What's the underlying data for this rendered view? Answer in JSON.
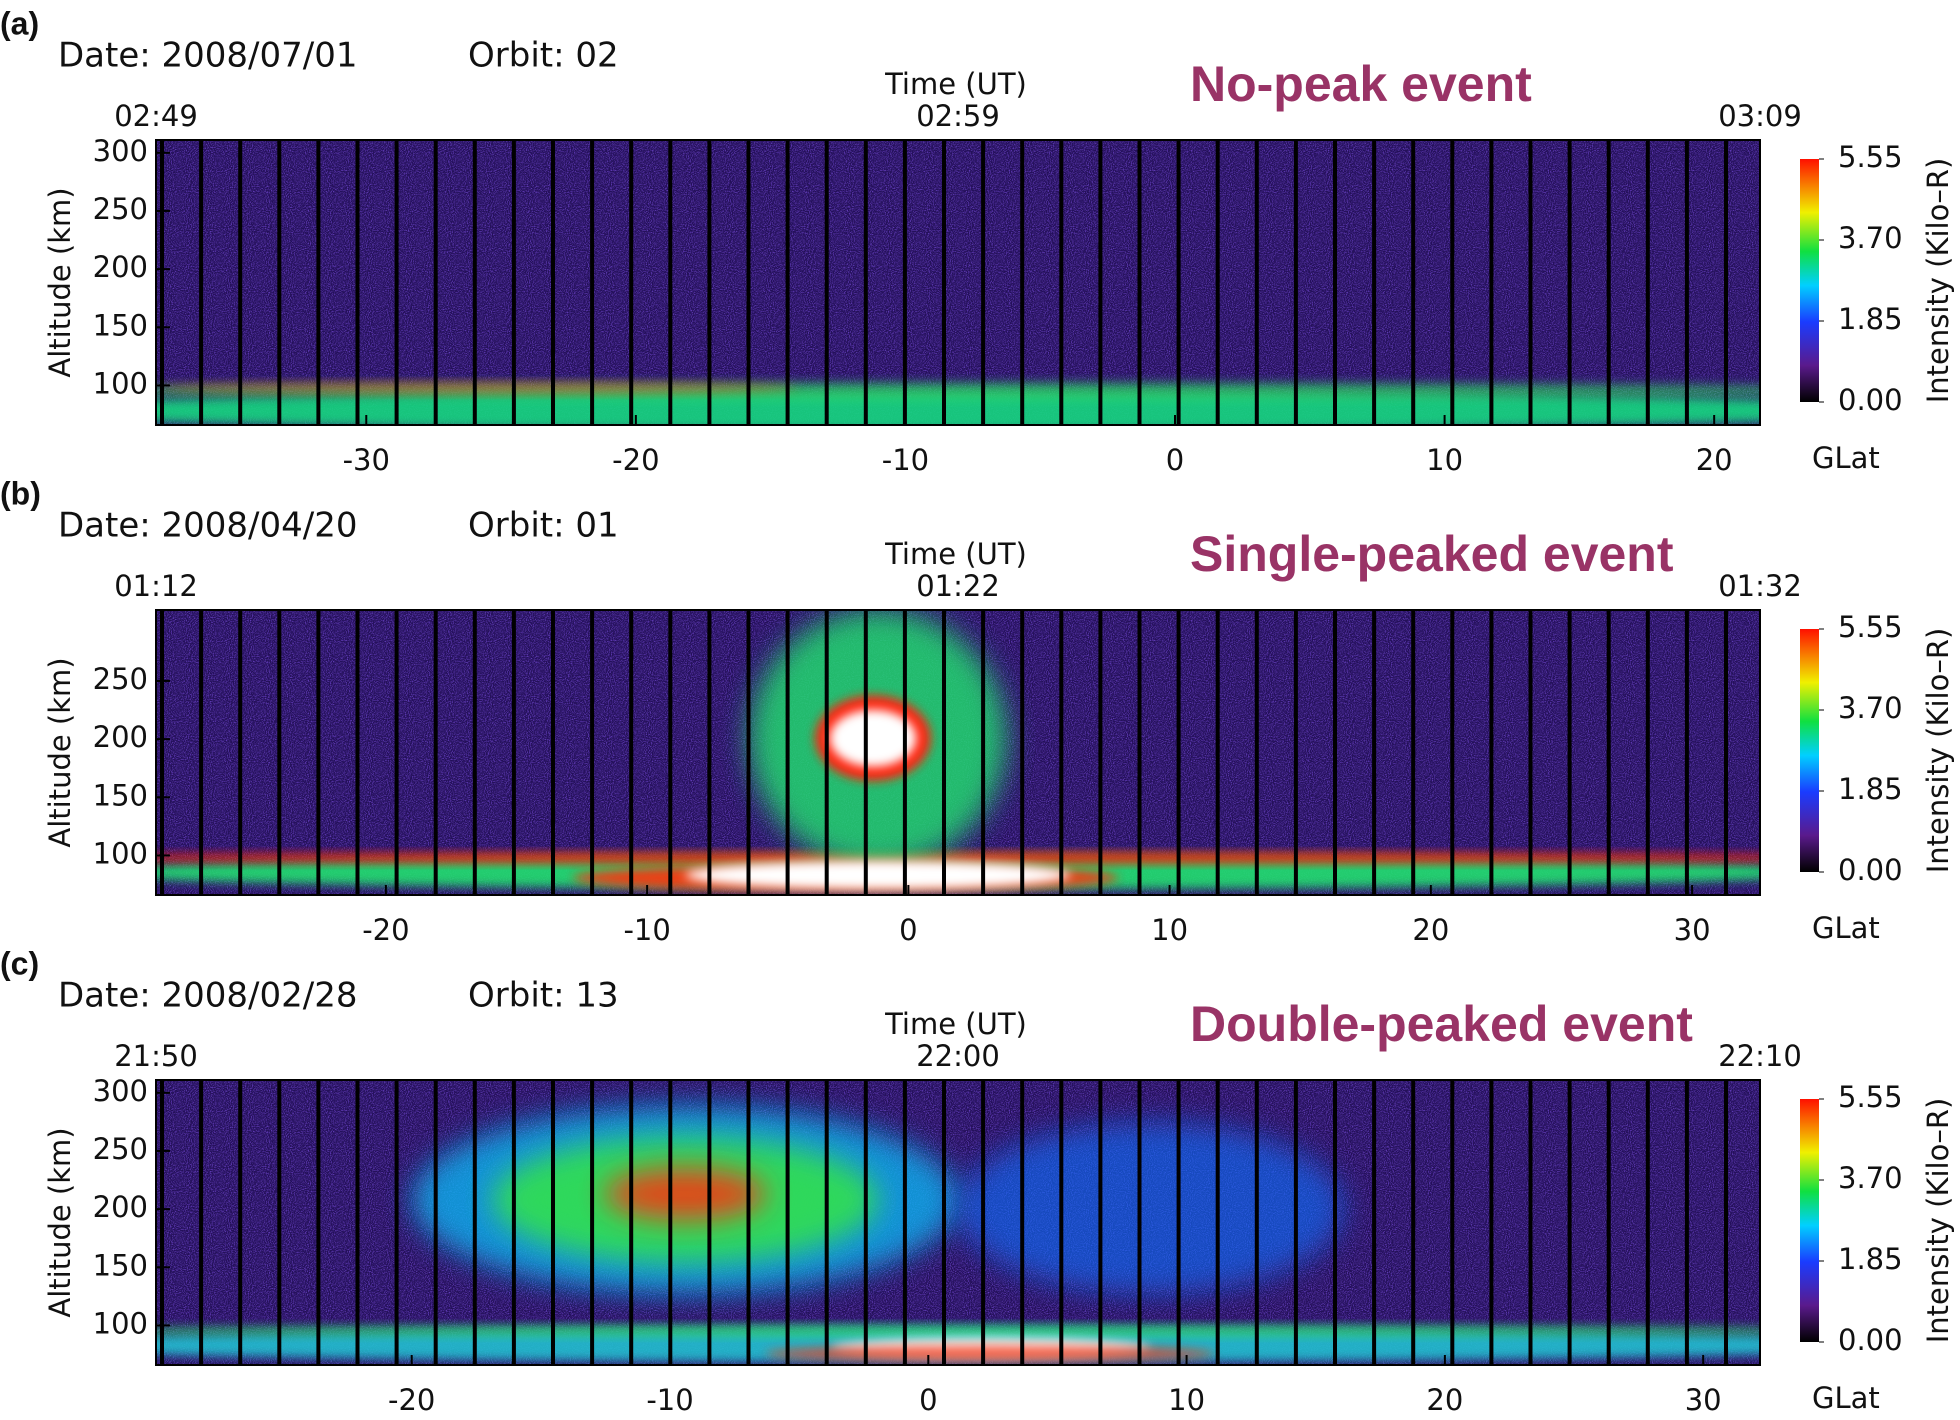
{
  "chart_data": [
    {
      "type": "heatmap",
      "panel_label": "(a)",
      "date_label": "Date: 2008/07/01",
      "orbit_label": "Orbit: 02",
      "title": "No-peak event",
      "time_axis_label": "Time (UT)",
      "time_ticks": [
        "02:49",
        "02:59",
        "03:09"
      ],
      "ylabel": "Altitude (km)",
      "ylim": [
        66,
        311
      ],
      "yticks": [
        100,
        150,
        200,
        250,
        300
      ],
      "xlabel": "GLat",
      "xlim": [
        -37.8,
        21.7
      ],
      "xticks": [
        -30,
        -20,
        -10,
        0,
        10,
        20
      ],
      "colorbar": {
        "label": "Intensity (Kilo–R)",
        "lim": [
          0,
          5.55
        ],
        "ticks": [
          {
            "value": 0,
            "label": "0.00"
          },
          1.85,
          {
            "value": 3.7,
            "label": "3.70"
          },
          5.55
        ]
      }
    },
    {
      "type": "heatmap",
      "panel_label": "(b)",
      "date_label": "Date: 2008/04/20",
      "orbit_label": "Orbit: 01",
      "title": "Single-peaked event",
      "time_axis_label": "Time (UT)",
      "time_ticks": [
        "01:12",
        "01:22",
        "01:32"
      ],
      "ylabel": "Altitude (km)",
      "ylim": [
        66,
        311
      ],
      "yticks": [
        100,
        150,
        200,
        250
      ],
      "xlabel": "GLat",
      "xlim": [
        -28.8,
        32.6
      ],
      "xticks": [
        -20,
        -10,
        0,
        10,
        20,
        30
      ],
      "colorbar": {
        "label": "Intensity (Kilo–R)",
        "lim": [
          0,
          5.55
        ],
        "ticks": [
          {
            "value": 0,
            "label": "0.00"
          },
          1.85,
          {
            "value": 3.7,
            "label": "3.70"
          },
          5.55
        ]
      }
    },
    {
      "type": "heatmap",
      "panel_label": "(c)",
      "date_label": "Date: 2008/02/28",
      "orbit_label": "Orbit: 13",
      "title": "Double-peaked event",
      "time_axis_label": "Time (UT)",
      "time_ticks": [
        "21:50",
        "22:00",
        "22:10"
      ],
      "ylabel": "Altitude (km)",
      "ylim": [
        66,
        311
      ],
      "yticks": [
        100,
        150,
        200,
        250,
        300
      ],
      "xlabel": "GLat",
      "xlim": [
        -29.9,
        32.2
      ],
      "xticks": [
        -20,
        -10,
        0,
        10,
        20,
        30
      ],
      "colorbar": {
        "label": "Intensity (Kilo–R)",
        "lim": [
          0,
          5.55
        ],
        "ticks": [
          {
            "value": 0,
            "label": "0.00"
          },
          1.85,
          {
            "value": 3.7,
            "label": "3.70"
          },
          5.55
        ]
      }
    }
  ]
}
